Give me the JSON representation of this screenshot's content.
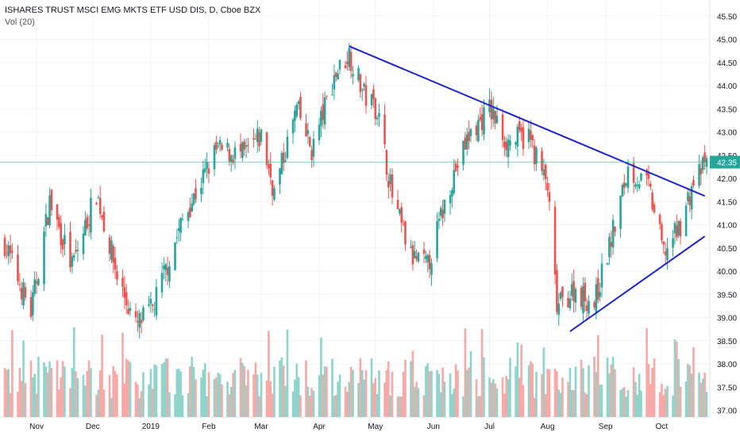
{
  "chart_data": {
    "type": "candlestick",
    "title": "ISHARES TRUST MSCI EMG MKTS ETF USD DIS, D, Cboe BZX",
    "indicator": "Vol (20)",
    "last_price": "42.35",
    "y_ticks": [
      "37.00",
      "37.50",
      "38.00",
      "38.50",
      "39.00",
      "39.50",
      "40.00",
      "40.50",
      "41.00",
      "41.50",
      "42.00",
      "42.50",
      "43.00",
      "43.50",
      "44.00",
      "44.50",
      "45.00",
      "45.50"
    ],
    "x_ticks": [
      "Nov",
      "Dec",
      "2019",
      "Feb",
      "Mar",
      "Apr",
      "May",
      "Jun",
      "Jul",
      "Aug",
      "Sep",
      "Oct"
    ],
    "ylim": [
      37.0,
      45.5
    ],
    "grid": true,
    "colors": {
      "up": "#26a69a",
      "down": "#ef5350",
      "vol_up": "#8fd4cb",
      "vol_down": "#f7a9a7",
      "trendline": "#1f26c9",
      "last_price": "#26a69a"
    },
    "price_path_anchors": [
      {
        "date": "2018-10-15",
        "close": 40.6
      },
      {
        "date": "2018-10-29",
        "close": 39.1
      },
      {
        "date": "2018-11-08",
        "close": 41.5
      },
      {
        "date": "2018-11-20",
        "close": 40.1
      },
      {
        "date": "2018-12-03",
        "close": 41.7
      },
      {
        "date": "2018-12-14",
        "close": 39.9
      },
      {
        "date": "2018-12-24",
        "close": 38.8
      },
      {
        "date": "2019-01-02",
        "close": 39.2
      },
      {
        "date": "2019-01-18",
        "close": 41.1
      },
      {
        "date": "2019-02-05",
        "close": 42.6
      },
      {
        "date": "2019-02-20",
        "close": 42.5
      },
      {
        "date": "2019-03-01",
        "close": 42.9
      },
      {
        "date": "2019-03-08",
        "close": 41.7
      },
      {
        "date": "2019-03-20",
        "close": 43.5
      },
      {
        "date": "2019-03-28",
        "close": 42.6
      },
      {
        "date": "2019-04-09",
        "close": 44.2
      },
      {
        "date": "2019-04-17",
        "close": 44.7
      },
      {
        "date": "2019-04-25",
        "close": 43.8
      },
      {
        "date": "2019-05-02",
        "close": 43.5
      },
      {
        "date": "2019-05-10",
        "close": 41.6
      },
      {
        "date": "2019-05-20",
        "close": 40.3
      },
      {
        "date": "2019-05-29",
        "close": 40.1
      },
      {
        "date": "2019-06-10",
        "close": 41.9
      },
      {
        "date": "2019-06-20",
        "close": 42.9
      },
      {
        "date": "2019-07-01",
        "close": 43.5
      },
      {
        "date": "2019-07-10",
        "close": 42.8
      },
      {
        "date": "2019-07-22",
        "close": 42.9
      },
      {
        "date": "2019-08-01",
        "close": 41.8
      },
      {
        "date": "2019-08-06",
        "close": 39.2
      },
      {
        "date": "2019-08-15",
        "close": 39.6
      },
      {
        "date": "2019-08-26",
        "close": 39.3
      },
      {
        "date": "2019-09-06",
        "close": 41.0
      },
      {
        "date": "2019-09-13",
        "close": 42.2
      },
      {
        "date": "2019-09-24",
        "close": 41.8
      },
      {
        "date": "2019-10-02",
        "close": 40.4
      },
      {
        "date": "2019-10-10",
        "close": 40.9
      },
      {
        "date": "2019-10-18",
        "close": 41.9
      },
      {
        "date": "2019-10-25",
        "close": 42.35
      }
    ],
    "trendlines": [
      {
        "from": {
          "date": "2019-04-17",
          "price": 44.85
        },
        "to": {
          "date": "2019-10-24",
          "price": 41.62
        }
      },
      {
        "from": {
          "date": "2019-08-13",
          "price": 38.7
        },
        "to": {
          "date": "2019-10-24",
          "price": 40.75
        }
      }
    ]
  }
}
